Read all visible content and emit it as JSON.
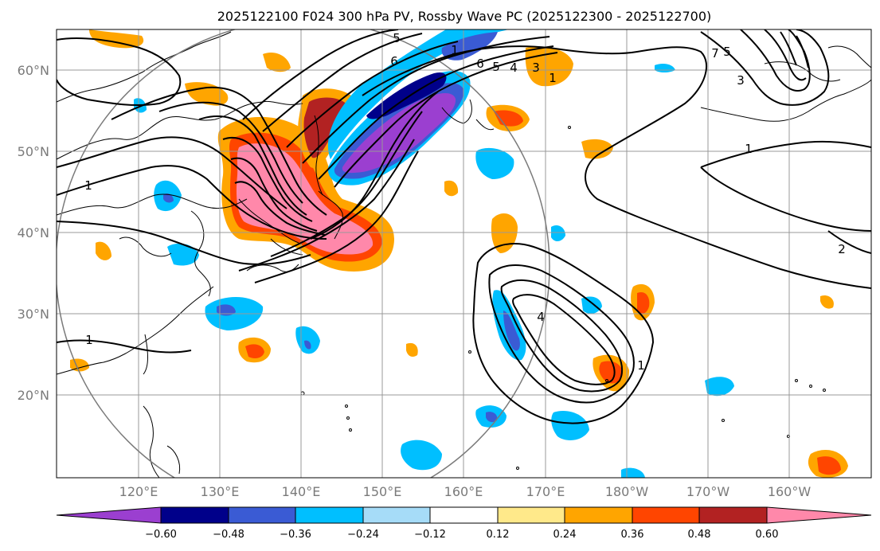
{
  "title": "2025122100 F024 300 hPa PV, Rossby Wave PC (2025122300 - 2025122700)",
  "map": {
    "lon_range": [
      110,
      210
    ],
    "lat_range": [
      10,
      65
    ],
    "lat_labels": [
      "20°N",
      "30°N",
      "40°N",
      "50°N",
      "60°N"
    ],
    "lon_labels": [
      "120°E",
      "130°E",
      "140°E",
      "150°E",
      "160°E",
      "170°E",
      "180°W",
      "170°W",
      "160°W"
    ],
    "gridlines": true
  },
  "colorbar": {
    "ticks": [
      "−0.60",
      "−0.48",
      "−0.36",
      "−0.24",
      "−0.12",
      "0.12",
      "0.24",
      "0.36",
      "0.48",
      "0.60"
    ],
    "colors": [
      "#9b3fd0",
      "#00008a",
      "#3a5bd4",
      "#00bfff",
      "#a6dcf8",
      "#ffffff",
      "#ffe98a",
      "#ffa500",
      "#ff4500",
      "#b22222",
      "#ff88aa"
    ]
  },
  "contour_labels": [
    "5",
    "6",
    "6",
    "5",
    "4",
    "3",
    "1",
    "1",
    "1",
    "5",
    "7",
    "3",
    "2",
    "4",
    "1",
    "1",
    "1"
  ]
}
